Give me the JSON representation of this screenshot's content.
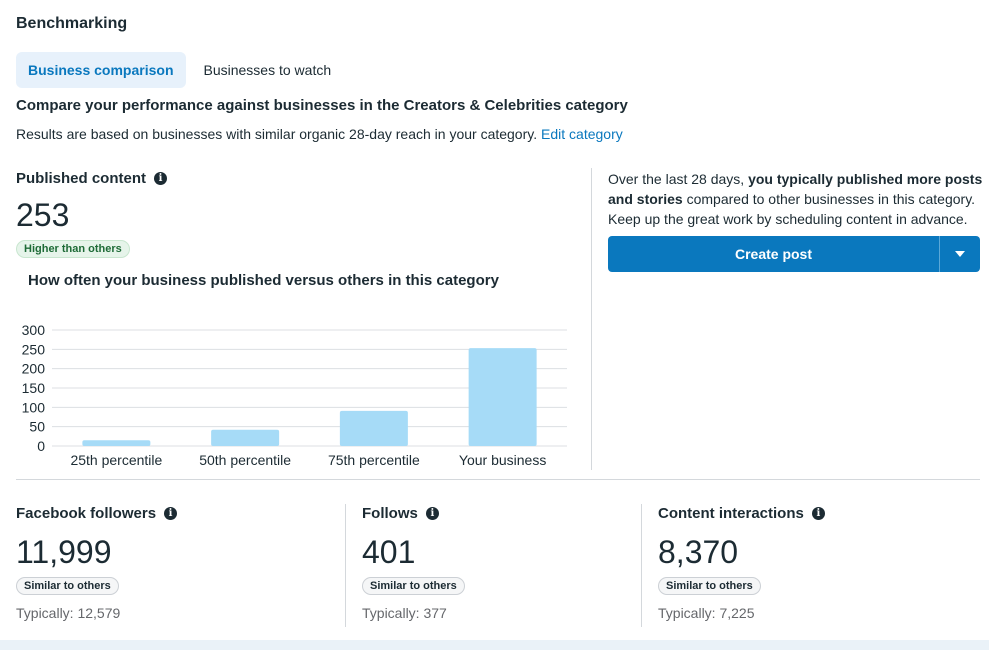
{
  "section_title": "Benchmarking",
  "tabs": [
    {
      "label": "Business comparison",
      "active": true
    },
    {
      "label": "Businesses to watch",
      "active": false
    }
  ],
  "headline": "Compare your performance against businesses in the Creators & Celebrities category",
  "subline": {
    "text": "Results are based on businesses with similar organic 28-day reach in your category.",
    "link": "Edit category"
  },
  "published": {
    "label": "Published content",
    "value": "253",
    "badge": "Higher than others",
    "chart_title": "How often your business published versus others in this category"
  },
  "chart_data": {
    "type": "bar",
    "categories": [
      "25th percentile",
      "50th percentile",
      "75th percentile",
      "Your business"
    ],
    "values": [
      15,
      42,
      91,
      253
    ],
    "ylim": [
      0,
      300
    ],
    "yticks": [
      0,
      50,
      100,
      150,
      200,
      250,
      300
    ],
    "grid": true,
    "bar_color": "#a6dbf7"
  },
  "insight": {
    "prefix": "Over the last 28 days,",
    "bold": "you typically published more posts and stories",
    "suffix": "compared to other businesses in this category. Keep up the great work by scheduling content in advance."
  },
  "cta": {
    "label": "Create post",
    "dropdown_icon": "caret-down-icon"
  },
  "metrics": [
    {
      "label": "Facebook followers",
      "value": "11,999",
      "badge": "Similar to others",
      "typically": "Typically: 12,579"
    },
    {
      "label": "Follows",
      "value": "401",
      "badge": "Similar to others",
      "typically": "Typically: 377"
    },
    {
      "label": "Content interactions",
      "value": "8,370",
      "badge": "Similar to others",
      "typically": "Typically: 7,225"
    }
  ],
  "colors": {
    "accent": "#0a78be",
    "active_tab_bg": "#e7f1fb"
  }
}
